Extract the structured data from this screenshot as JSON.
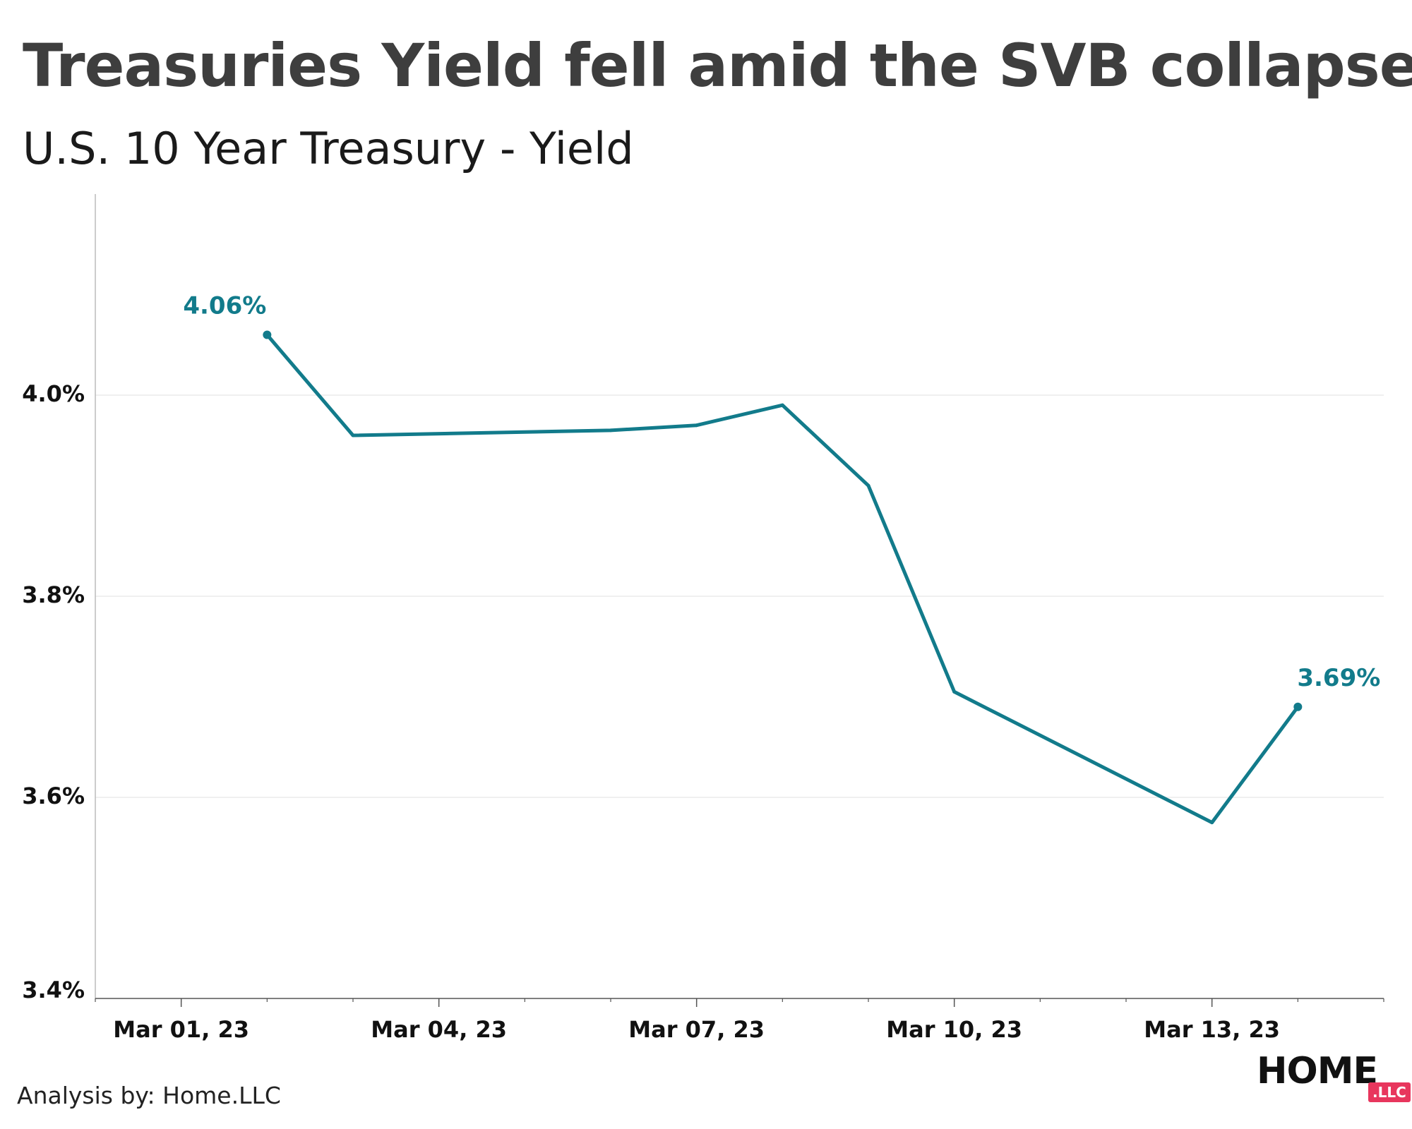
{
  "title": "Treasuries Yield fell amid the SVB collapse",
  "subtitle": "U.S. 10 Year Treasury - Yield",
  "credit": "Analysis by: Home.LLC",
  "logo": {
    "word": "HOME",
    "badge": ".LLC"
  },
  "colors": {
    "line": "#127b8b",
    "grid": "#ececec",
    "axis": "#555555",
    "text": "#111111",
    "title": "#3e3e3e",
    "badge": "#e8365d"
  },
  "chart_data": {
    "type": "line",
    "title": "Treasuries Yield fell amid the SVB collapse",
    "subtitle": "U.S. 10 Year Treasury - Yield",
    "xlabel": "",
    "ylabel": "",
    "x": [
      "2023-03-02",
      "2023-03-03",
      "2023-03-06",
      "2023-03-07",
      "2023-03-08",
      "2023-03-09",
      "2023-03-10",
      "2023-03-13",
      "2023-03-14"
    ],
    "series": [
      {
        "values": [
          4.06,
          3.96,
          3.965,
          3.97,
          3.99,
          3.91,
          3.705,
          3.575,
          3.69
        ]
      }
    ],
    "data_labels": [
      {
        "x": "2023-03-02",
        "text": "4.06%"
      },
      {
        "x": "2023-03-14",
        "text": "3.69%"
      }
    ],
    "x_ticks": [
      {
        "date": "2023-03-01",
        "label": "Mar 01, 23"
      },
      {
        "date": "2023-03-04",
        "label": "Mar 04, 23"
      },
      {
        "date": "2023-03-07",
        "label": "Mar 07, 23"
      },
      {
        "date": "2023-03-10",
        "label": "Mar 10, 23"
      },
      {
        "date": "2023-03-13",
        "label": "Mar 13, 23"
      }
    ],
    "xlim": [
      "2023-02-28",
      "2023-03-15"
    ],
    "y_ticks": [
      {
        "value": 3.4,
        "label": "3.4%"
      },
      {
        "value": 3.6,
        "label": "3.6%"
      },
      {
        "value": 3.8,
        "label": "3.8%"
      },
      {
        "value": 4.0,
        "label": "4.0%"
      }
    ],
    "ylim": [
      3.4,
      4.2
    ],
    "grid": true
  }
}
